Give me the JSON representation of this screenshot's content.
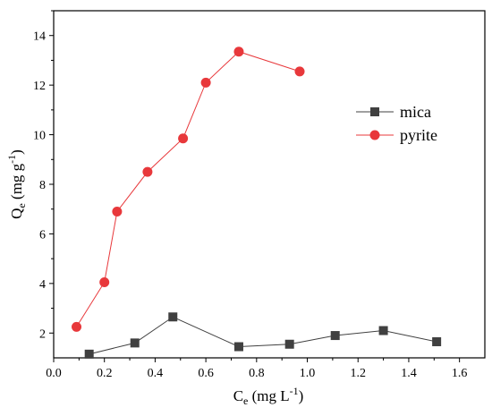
{
  "chart_data": {
    "type": "line",
    "title": "",
    "xlabel": {
      "main": "C",
      "sub": "e",
      "unit_pre": " (mg L",
      "unit_sup": "-1",
      "unit_post": ")"
    },
    "ylabel": {
      "main": "Q",
      "sub": "e",
      "unit_pre": " (mg g",
      "unit_sup": "-1",
      "unit_post": ")"
    },
    "xlim": [
      0.0,
      1.7
    ],
    "ylim": [
      1.0,
      15.0
    ],
    "xticks": [
      0.0,
      0.2,
      0.4,
      0.6,
      0.8,
      1.0,
      1.2,
      1.4,
      1.6
    ],
    "xtick_labels": [
      "0.0",
      "0.2",
      "0.4",
      "0.6",
      "0.8",
      "1.0",
      "1.2",
      "1.4",
      "1.6"
    ],
    "yticks": [
      2,
      4,
      6,
      8,
      10,
      12,
      14
    ],
    "ytick_labels": [
      "2",
      "4",
      "6",
      "8",
      "10",
      "12",
      "14"
    ],
    "grid": false,
    "legend_position": "right",
    "series": [
      {
        "name": "mica",
        "marker": "square",
        "color": "#404040",
        "x": [
          0.14,
          0.32,
          0.47,
          0.73,
          0.93,
          1.11,
          1.3,
          1.51
        ],
        "y": [
          1.15,
          1.6,
          2.65,
          1.45,
          1.55,
          1.9,
          2.1,
          1.65
        ]
      },
      {
        "name": "pyrite",
        "marker": "circle",
        "color": "#e8383b",
        "x": [
          0.09,
          0.2,
          0.25,
          0.37,
          0.51,
          0.6,
          0.73,
          0.97
        ],
        "y": [
          2.25,
          4.05,
          6.9,
          8.5,
          9.85,
          12.1,
          13.35,
          12.55
        ]
      }
    ]
  }
}
